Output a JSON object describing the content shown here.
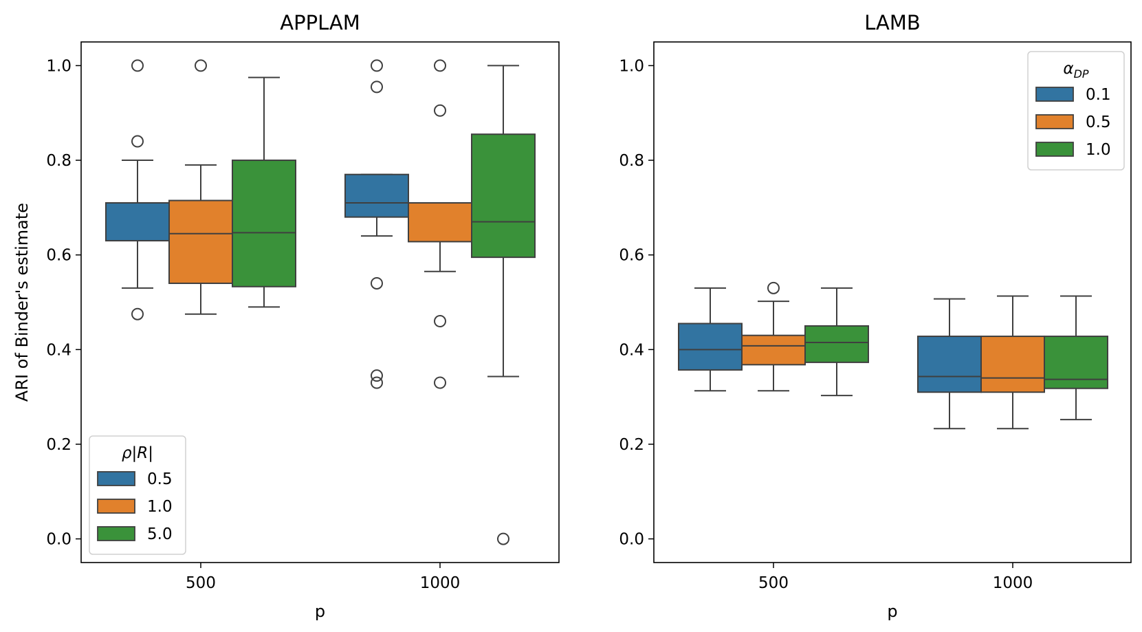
{
  "chart_data": [
    {
      "type": "box",
      "title": "APPLAM",
      "xlabel": "p",
      "ylabel": "ARI of Binder's estimate",
      "ylim": [
        -0.05,
        1.05
      ],
      "yticks": [
        0.0,
        0.2,
        0.4,
        0.6,
        0.8,
        1.0
      ],
      "ytick_labels": [
        "0.0",
        "0.2",
        "0.4",
        "0.6",
        "0.8",
        "1.0"
      ],
      "categories": [
        "500",
        "1000"
      ],
      "legend": {
        "title": "ρ|R|",
        "title_main": "ρ|R|",
        "title_sub": "",
        "location": "lower-left",
        "entries": [
          "0.5",
          "1.0",
          "5.0"
        ]
      },
      "series": [
        {
          "name": "0.5",
          "color": "#3274a1",
          "boxes": [
            {
              "whisker_low": 0.53,
              "q1": 0.63,
              "median": 0.71,
              "q3": 0.71,
              "whisker_high": 0.8,
              "outliers": [
                1.0,
                0.84,
                0.475
              ]
            },
            {
              "whisker_low": 0.64,
              "q1": 0.68,
              "median": 0.71,
              "q3": 0.77,
              "whisker_high": 0.77,
              "outliers": [
                1.0,
                0.955,
                0.54,
                0.345,
                0.33
              ]
            }
          ]
        },
        {
          "name": "1.0",
          "color": "#e1812c",
          "boxes": [
            {
              "whisker_low": 0.475,
              "q1": 0.54,
              "median": 0.645,
              "q3": 0.715,
              "whisker_high": 0.79,
              "outliers": [
                1.0
              ]
            },
            {
              "whisker_low": 0.565,
              "q1": 0.628,
              "median": 0.71,
              "q3": 0.71,
              "whisker_high": 0.71,
              "outliers": [
                1.0,
                0.905,
                0.46,
                0.33
              ]
            }
          ]
        },
        {
          "name": "5.0",
          "color": "#3a923a",
          "boxes": [
            {
              "whisker_low": 0.49,
              "q1": 0.533,
              "median": 0.647,
              "q3": 0.8,
              "whisker_high": 0.975,
              "outliers": []
            },
            {
              "whisker_low": 0.343,
              "q1": 0.595,
              "median": 0.67,
              "q3": 0.855,
              "whisker_high": 1.0,
              "outliers": [
                0.0
              ]
            }
          ]
        }
      ]
    },
    {
      "type": "box",
      "title": "LAMB",
      "xlabel": "p",
      "ylabel": "",
      "ylim": [
        -0.05,
        1.05
      ],
      "yticks": [
        0.0,
        0.2,
        0.4,
        0.6,
        0.8,
        1.0
      ],
      "ytick_labels": [
        "0.0",
        "0.2",
        "0.4",
        "0.6",
        "0.8",
        "1.0"
      ],
      "categories": [
        "500",
        "1000"
      ],
      "legend": {
        "title": "αDP",
        "title_main": "α",
        "title_sub": "DP",
        "location": "upper-right",
        "entries": [
          "0.1",
          "0.5",
          "1.0"
        ]
      },
      "series": [
        {
          "name": "0.1",
          "color": "#3274a1",
          "boxes": [
            {
              "whisker_low": 0.313,
              "q1": 0.357,
              "median": 0.4,
              "q3": 0.455,
              "whisker_high": 0.53,
              "outliers": []
            },
            {
              "whisker_low": 0.233,
              "q1": 0.31,
              "median": 0.343,
              "q3": 0.428,
              "whisker_high": 0.507,
              "outliers": []
            }
          ]
        },
        {
          "name": "0.5",
          "color": "#e1812c",
          "boxes": [
            {
              "whisker_low": 0.313,
              "q1": 0.368,
              "median": 0.408,
              "q3": 0.43,
              "whisker_high": 0.502,
              "outliers": [
                0.53
              ]
            },
            {
              "whisker_low": 0.233,
              "q1": 0.31,
              "median": 0.34,
              "q3": 0.428,
              "whisker_high": 0.513,
              "outliers": []
            }
          ]
        },
        {
          "name": "1.0",
          "color": "#3a923a",
          "boxes": [
            {
              "whisker_low": 0.303,
              "q1": 0.373,
              "median": 0.415,
              "q3": 0.45,
              "whisker_high": 0.53,
              "outliers": []
            },
            {
              "whisker_low": 0.252,
              "q1": 0.318,
              "median": 0.337,
              "q3": 0.428,
              "whisker_high": 0.513,
              "outliers": []
            }
          ]
        }
      ]
    }
  ]
}
